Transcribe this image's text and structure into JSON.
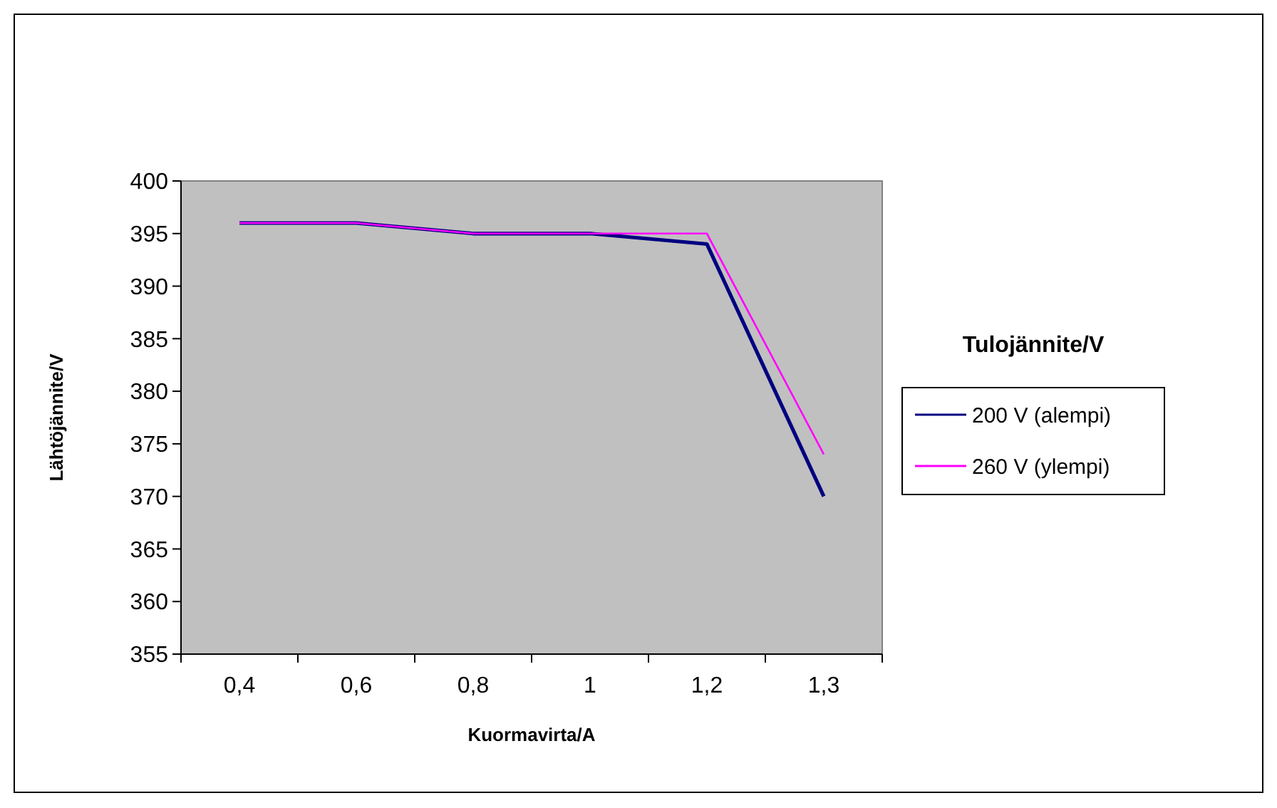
{
  "chart_data": {
    "type": "line",
    "xlabel": "Kuormavirta/A",
    "ylabel": "Lähtöjännite/V",
    "legend_title": "Tulojännite/V",
    "categories": [
      "0,4",
      "0,6",
      "0,8",
      "1",
      "1,2",
      "1,3"
    ],
    "series": [
      {
        "name": "200 V (alempi)",
        "color": "#000080",
        "values": [
          396,
          396,
          395,
          395,
          394,
          370
        ]
      },
      {
        "name": "260 V (ylempi)",
        "color": "#ff00ff",
        "values": [
          396,
          396,
          395,
          395,
          395,
          374
        ]
      }
    ],
    "ylim": [
      355,
      400
    ],
    "yticks": [
      355,
      360,
      365,
      370,
      375,
      380,
      385,
      390,
      395,
      400
    ],
    "grid": false,
    "legend": "right",
    "marker": "none",
    "line_style": "solid"
  }
}
